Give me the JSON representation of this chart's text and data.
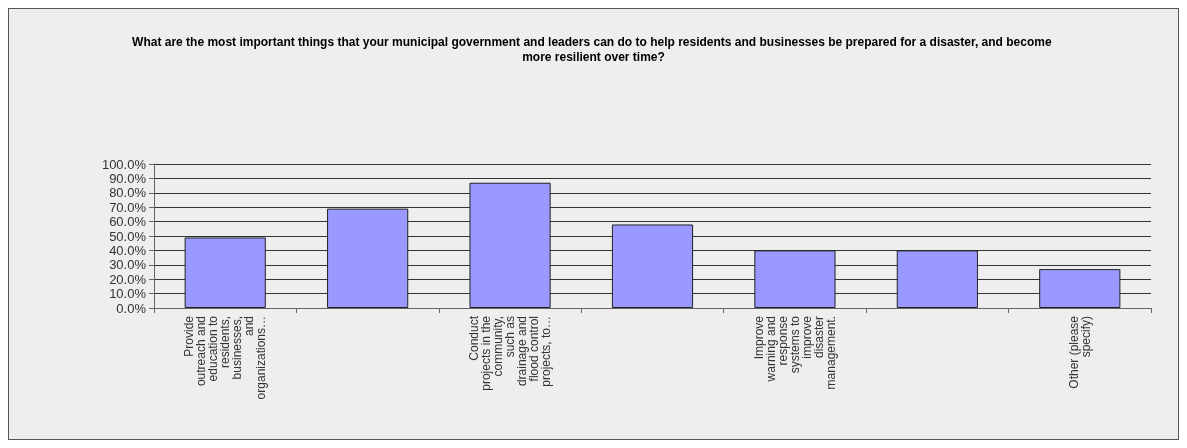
{
  "chart_data": {
    "type": "bar",
    "title": "What are the most important things that your municipal government and leaders can do to help residents and businesses be prepared for a disaster, and become more resilient over time?",
    "categories": [
      "Provide\noutreach and\neducation to\nresidents,\nbusinesses,\nand\norganizations…",
      null,
      "Conduct\nprojects in the\ncommunity,\nsuch as\ndrainage and\nflood control\nprojects, to…",
      null,
      "Improve\nwarning and\nresponse\nsystems to\nimprove\ndisaster\nmanagement.",
      null,
      "Other (please\nspecify)"
    ],
    "values": [
      49,
      69,
      87,
      58,
      40,
      40,
      27
    ],
    "color": "#9999ff",
    "ylim": [
      0,
      100
    ],
    "yticks": [
      {
        "value": 0,
        "label": "0.0%"
      },
      {
        "value": 10,
        "label": "10.0%"
      },
      {
        "value": 20,
        "label": "20.0%"
      },
      {
        "value": 30,
        "label": "30.0%"
      },
      {
        "value": 40,
        "label": "40.0%"
      },
      {
        "value": 50,
        "label": "50.0%"
      },
      {
        "value": 60,
        "label": "60.0%"
      },
      {
        "value": 70,
        "label": "70.0%"
      },
      {
        "value": 80,
        "label": "80.0%"
      },
      {
        "value": 90,
        "label": "90.0%"
      },
      {
        "value": 100,
        "label": "100.0%"
      }
    ],
    "grid": "y"
  }
}
